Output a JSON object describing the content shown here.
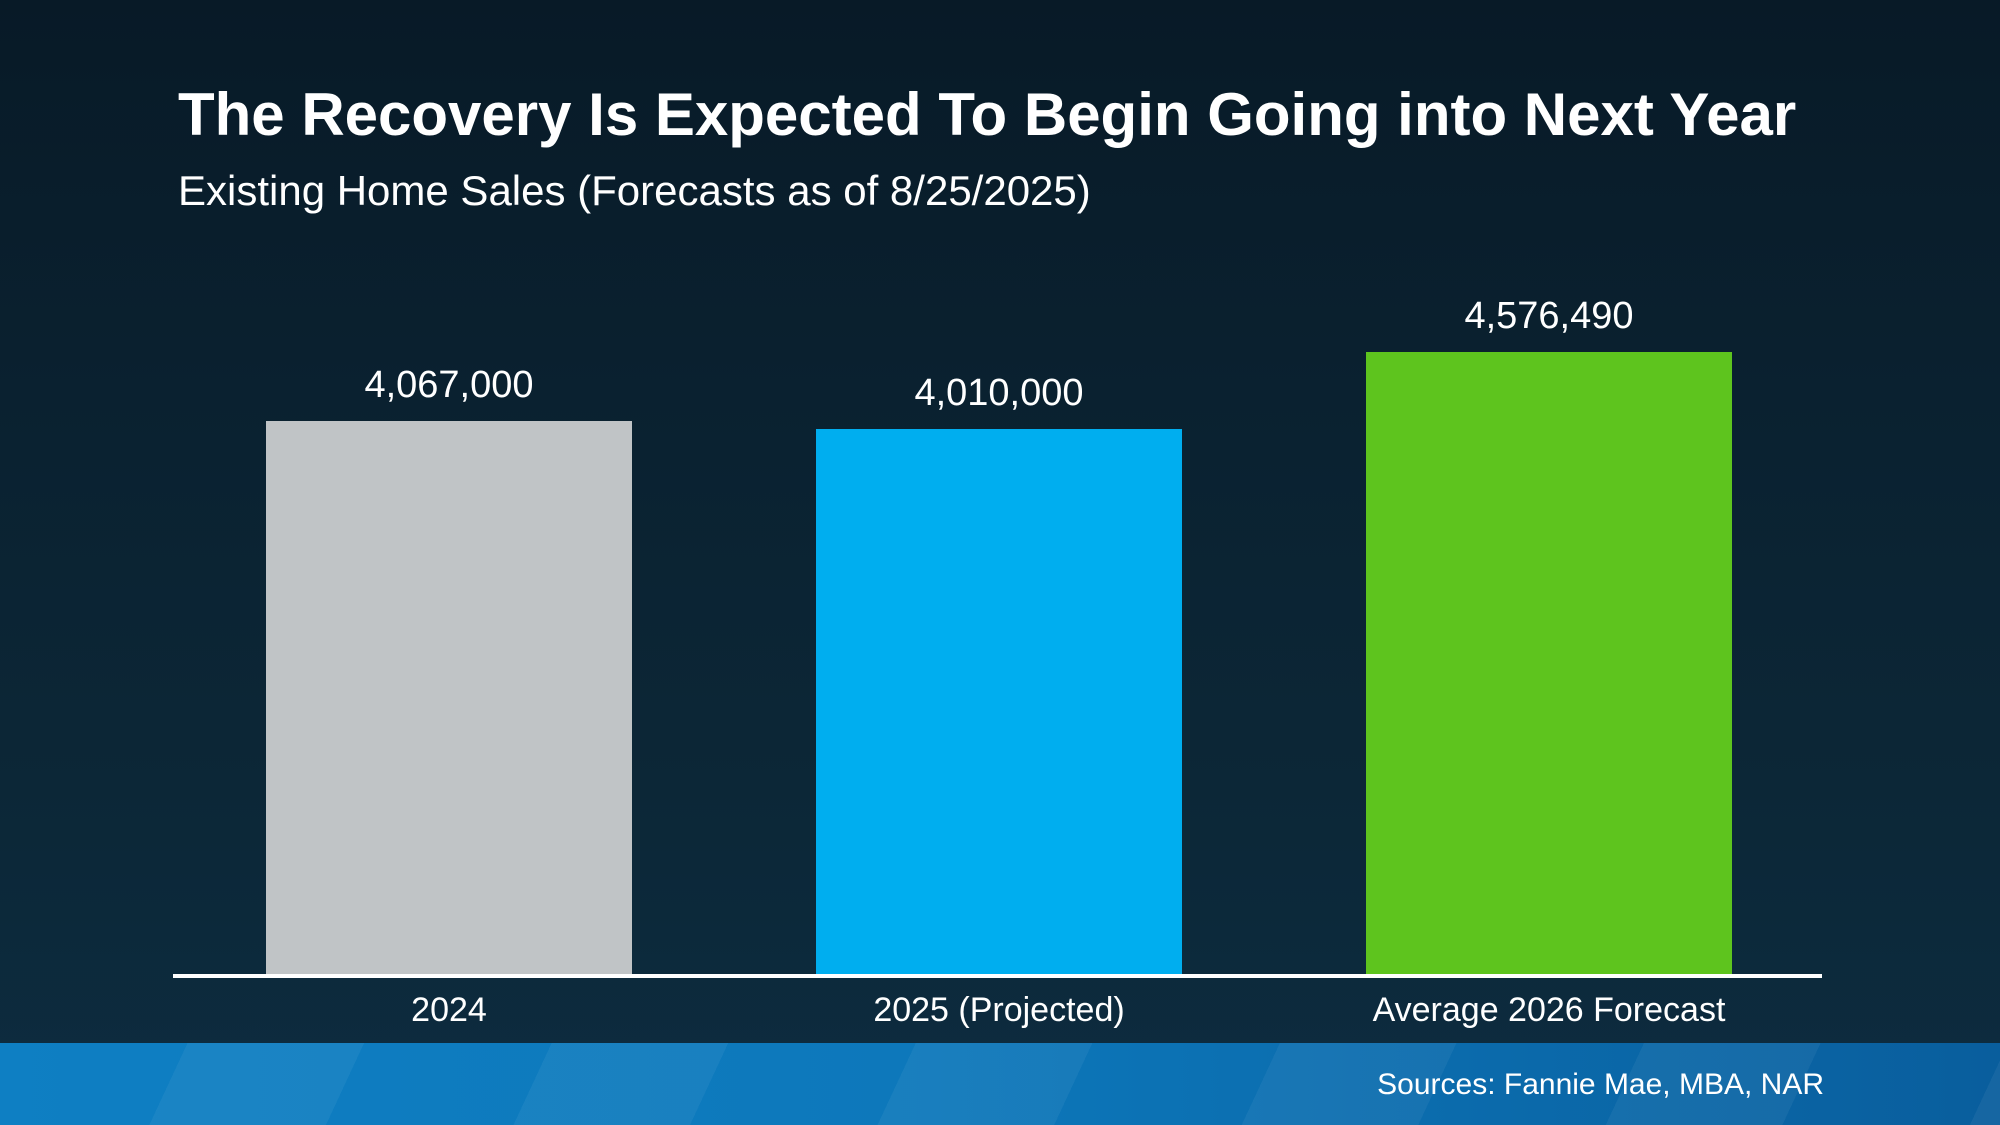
{
  "slide": {
    "title": "The Recovery Is Expected To Begin Going into Next Year",
    "subtitle": "Existing Home Sales (Forecasts as of 8/25/2025)",
    "footer": {
      "sources": "Sources: Fannie Mae, MBA, NAR"
    },
    "colors": {
      "background_top": "#081a27",
      "background_bottom": "#0d2c40",
      "footer_band_left": "#0e7fc3",
      "footer_band_right": "#095e9d",
      "axis_line": "#ffffff",
      "text": "#ffffff"
    }
  },
  "chart_data": {
    "type": "bar",
    "title": "The Recovery Is Expected To Begin Going into Next Year",
    "subtitle": "Existing Home Sales (Forecasts as of 8/25/2025)",
    "categories": [
      "2024",
      "2025 (Projected)",
      "Average 2026 Forecast"
    ],
    "values": [
      4067000,
      4010000,
      4576490
    ],
    "value_labels": [
      "4,067,000",
      "4,010,000",
      "4,576,490"
    ],
    "bar_colors": [
      "#c0c4c6",
      "#00aeef",
      "#5ec41e"
    ],
    "xlabel": "",
    "ylabel": "",
    "ylim": [
      0,
      4576490
    ],
    "grid": false,
    "legend": false
  }
}
